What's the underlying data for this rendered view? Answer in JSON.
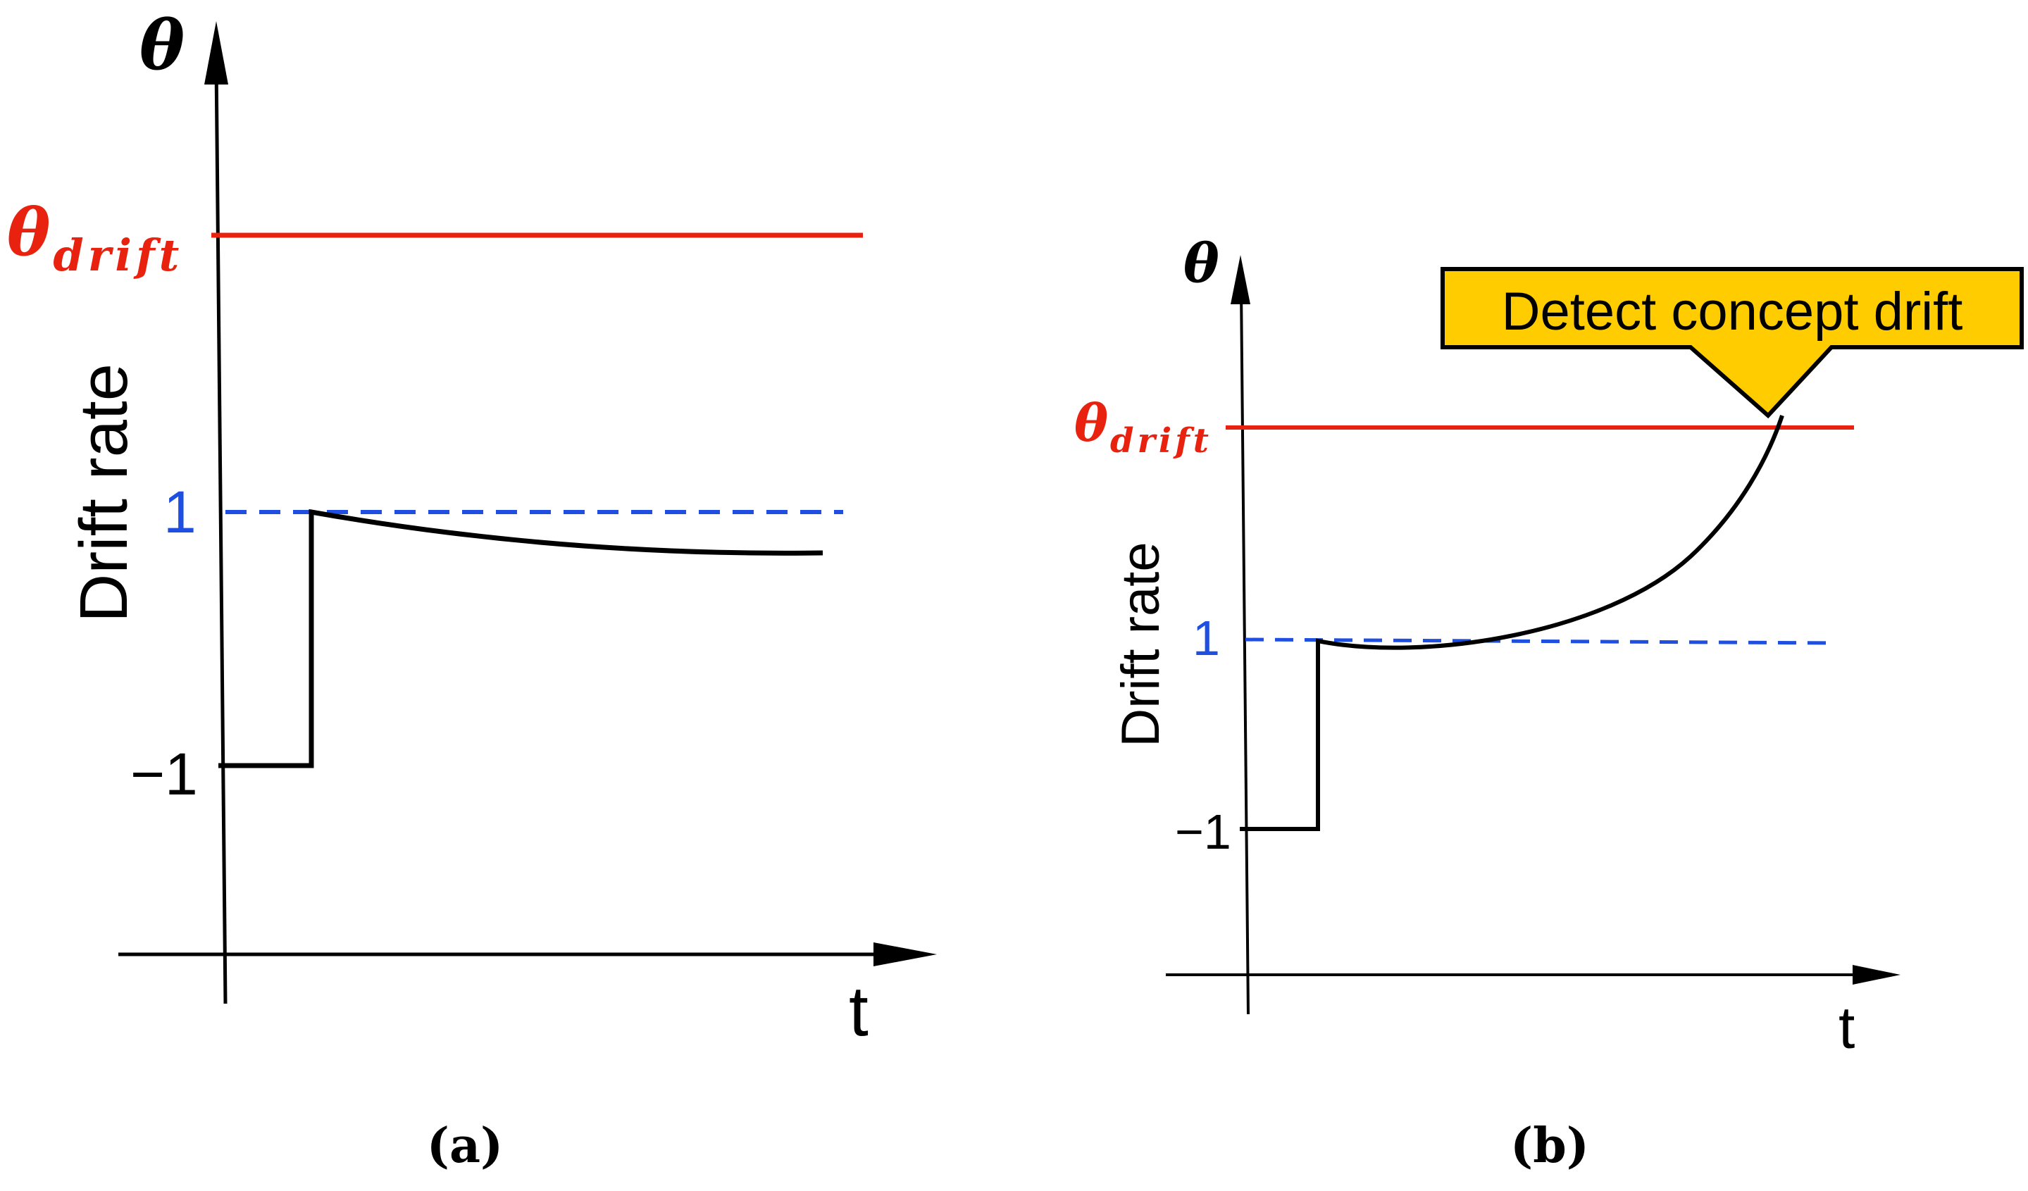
{
  "colors": {
    "axis": "#000000",
    "curve": "#000000",
    "threshold": "#e8220f",
    "unit_line": "#1f4fe0",
    "callout_fill": "#ffcc00",
    "callout_stroke": "#000000"
  },
  "panel_a": {
    "theta_label": "θ",
    "theta_drift_main": "θ",
    "theta_drift_sub": "drift",
    "y_axis_label": "Drift rate",
    "tick_one": "1",
    "tick_minus_one": "−1",
    "x_axis_label": "t",
    "caption": "(a)"
  },
  "panel_b": {
    "theta_label": "θ",
    "theta_drift_main": "θ",
    "theta_drift_sub": "drift",
    "y_axis_label": "Drift rate",
    "tick_one": "1",
    "tick_minus_one": "−1",
    "x_axis_label": "t",
    "caption": "(b)",
    "callout_text": "Detect concept drift"
  }
}
